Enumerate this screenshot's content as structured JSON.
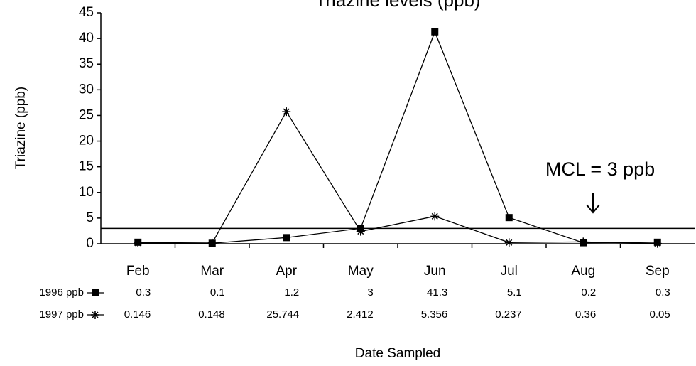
{
  "chart_data": {
    "type": "line",
    "title": "Triazine levels (ppb)",
    "y_label": "Triazine (ppb)",
    "x_label": "Date Sampled",
    "categories": [
      "Feb",
      "Mar",
      "Apr",
      "May",
      "Jun",
      "Jul",
      "Aug",
      "Sep"
    ],
    "series": [
      {
        "name": "1996 ppb",
        "color": "#000000",
        "marker": "square",
        "values": [
          0.3,
          0.1,
          1.2,
          3,
          41.3,
          5.1,
          0.2,
          0.3
        ]
      },
      {
        "name": "1997 ppb",
        "color": "#000000",
        "marker": "star",
        "values": [
          0.146,
          0.148,
          25.744,
          2.412,
          5.356,
          0.237,
          0.36,
          0.05
        ]
      }
    ],
    "ylim": [
      0,
      45
    ],
    "yticks": [
      0,
      5,
      10,
      15,
      20,
      25,
      30,
      35,
      40,
      45
    ],
    "grid": false,
    "reference_line": {
      "value": 3,
      "label": "MCL = 3 ppb"
    }
  }
}
